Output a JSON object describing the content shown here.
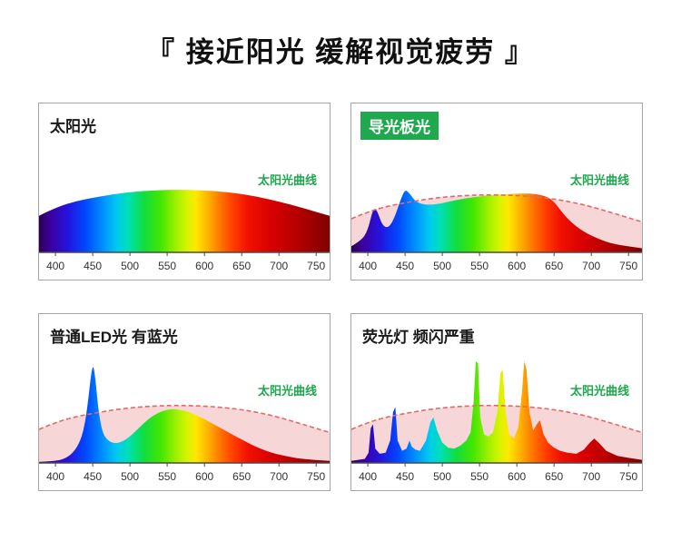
{
  "page": {
    "title": "『 接近阳光 缓解视觉疲劳 』",
    "background": "#ffffff"
  },
  "colors": {
    "accent_green": "#1fa84e",
    "sun_dash": "#e06a6a",
    "sun_fill": "#eba4a4",
    "axis": "#4a4a4a",
    "panel_border": "#a6a6a6",
    "spectrum_stops": [
      [
        0,
        "#2a0050"
      ],
      [
        0.04,
        "#3c00a0"
      ],
      [
        0.1,
        "#2414e0"
      ],
      [
        0.16,
        "#0048ff"
      ],
      [
        0.22,
        "#0090ff"
      ],
      [
        0.27,
        "#00ccee"
      ],
      [
        0.31,
        "#00e0b0"
      ],
      [
        0.36,
        "#10dd40"
      ],
      [
        0.42,
        "#45e600"
      ],
      [
        0.47,
        "#9cf000"
      ],
      [
        0.51,
        "#d8f400"
      ],
      [
        0.54,
        "#ffe800"
      ],
      [
        0.58,
        "#ffb400"
      ],
      [
        0.62,
        "#ff7a00"
      ],
      [
        0.67,
        "#ff3c00"
      ],
      [
        0.72,
        "#f01000"
      ],
      [
        0.8,
        "#d80000"
      ],
      [
        0.9,
        "#b00000"
      ],
      [
        1,
        "#800000"
      ]
    ]
  },
  "panels": [
    {
      "title": "太阳光",
      "title_style": "plain",
      "curve_label": "太阳光曲线"
    },
    {
      "title": "导光板光",
      "title_style": "badge",
      "curve_label": "太阳光曲线"
    },
    {
      "title": "普通LED光 有蓝光",
      "title_style": "plain",
      "curve_label": "太阳光曲线"
    },
    {
      "title": "荧光灯 频闪严重",
      "title_style": "plain",
      "curve_label": "太阳光曲线"
    }
  ],
  "chart_data": [
    {
      "type": "area",
      "title": "太阳光",
      "x_ticks": [
        400,
        450,
        500,
        550,
        600,
        650,
        700,
        750
      ],
      "x_range": [
        378,
        768
      ],
      "y_range": [
        0,
        1
      ],
      "grid": false,
      "series": [
        {
          "name": "太阳光",
          "style": "spectrum-area",
          "smooth": true,
          "points": [
            [
              378,
              0.36
            ],
            [
              400,
              0.44
            ],
            [
              430,
              0.51
            ],
            [
              460,
              0.55
            ],
            [
              490,
              0.585
            ],
            [
              520,
              0.605
            ],
            [
              550,
              0.615
            ],
            [
              580,
              0.615
            ],
            [
              610,
              0.605
            ],
            [
              640,
              0.585
            ],
            [
              670,
              0.55
            ],
            [
              700,
              0.5
            ],
            [
              730,
              0.44
            ],
            [
              768,
              0.36
            ]
          ]
        }
      ]
    },
    {
      "type": "area",
      "title": "导光板光",
      "x_ticks": [
        400,
        450,
        500,
        550,
        600,
        650,
        700,
        750
      ],
      "x_range": [
        378,
        768
      ],
      "y_range": [
        0,
        1
      ],
      "grid": false,
      "series": [
        {
          "name": "导光板光",
          "style": "spectrum-area",
          "smooth": true,
          "points": [
            [
              378,
              0.06
            ],
            [
              392,
              0.12
            ],
            [
              400,
              0.22
            ],
            [
              406,
              0.4
            ],
            [
              410,
              0.44
            ],
            [
              414,
              0.38
            ],
            [
              420,
              0.26
            ],
            [
              428,
              0.24
            ],
            [
              436,
              0.34
            ],
            [
              444,
              0.52
            ],
            [
              450,
              0.62
            ],
            [
              456,
              0.58
            ],
            [
              464,
              0.5
            ],
            [
              475,
              0.47
            ],
            [
              490,
              0.47
            ],
            [
              510,
              0.5
            ],
            [
              530,
              0.53
            ],
            [
              550,
              0.55
            ],
            [
              570,
              0.565
            ],
            [
              590,
              0.575
            ],
            [
              610,
              0.58
            ],
            [
              625,
              0.575
            ],
            [
              640,
              0.55
            ],
            [
              650,
              0.5
            ],
            [
              660,
              0.4
            ],
            [
              672,
              0.3
            ],
            [
              690,
              0.2
            ],
            [
              710,
              0.13
            ],
            [
              730,
              0.08
            ],
            [
              768,
              0.04
            ]
          ]
        },
        {
          "name": "太阳光曲线",
          "style": "dashed-sun",
          "smooth": true,
          "points": [
            [
              378,
              0.33
            ],
            [
              400,
              0.4
            ],
            [
              430,
              0.46
            ],
            [
              460,
              0.5
            ],
            [
              490,
              0.535
            ],
            [
              520,
              0.555
            ],
            [
              550,
              0.565
            ],
            [
              580,
              0.565
            ],
            [
              610,
              0.555
            ],
            [
              640,
              0.535
            ],
            [
              670,
              0.5
            ],
            [
              700,
              0.45
            ],
            [
              730,
              0.385
            ],
            [
              768,
              0.3
            ]
          ]
        }
      ]
    },
    {
      "type": "area",
      "title": "普通LED光 有蓝光",
      "x_ticks": [
        400,
        450,
        500,
        550,
        600,
        650,
        700,
        750
      ],
      "x_range": [
        378,
        768
      ],
      "y_range": [
        0,
        1
      ],
      "grid": false,
      "series": [
        {
          "name": "普通LED光",
          "style": "spectrum-area",
          "smooth": true,
          "points": [
            [
              378,
              0.01
            ],
            [
              400,
              0.02
            ],
            [
              412,
              0.04
            ],
            [
              424,
              0.1
            ],
            [
              434,
              0.22
            ],
            [
              440,
              0.4
            ],
            [
              444,
              0.62
            ],
            [
              448,
              0.88
            ],
            [
              451,
              0.97
            ],
            [
              454,
              0.8
            ],
            [
              458,
              0.5
            ],
            [
              463,
              0.3
            ],
            [
              470,
              0.22
            ],
            [
              480,
              0.19
            ],
            [
              490,
              0.21
            ],
            [
              500,
              0.26
            ],
            [
              510,
              0.33
            ],
            [
              520,
              0.4
            ],
            [
              530,
              0.46
            ],
            [
              540,
              0.5
            ],
            [
              550,
              0.525
            ],
            [
              560,
              0.53
            ],
            [
              570,
              0.52
            ],
            [
              580,
              0.5
            ],
            [
              590,
              0.465
            ],
            [
              600,
              0.43
            ],
            [
              615,
              0.37
            ],
            [
              630,
              0.31
            ],
            [
              645,
              0.25
            ],
            [
              660,
              0.19
            ],
            [
              675,
              0.14
            ],
            [
              690,
              0.1
            ],
            [
              710,
              0.065
            ],
            [
              730,
              0.04
            ],
            [
              768,
              0.02
            ]
          ]
        },
        {
          "name": "太阳光曲线",
          "style": "dashed-sun",
          "smooth": true,
          "points": [
            [
              378,
              0.33
            ],
            [
              400,
              0.4
            ],
            [
              430,
              0.46
            ],
            [
              460,
              0.5
            ],
            [
              490,
              0.535
            ],
            [
              520,
              0.555
            ],
            [
              550,
              0.565
            ],
            [
              580,
              0.565
            ],
            [
              610,
              0.555
            ],
            [
              640,
              0.535
            ],
            [
              670,
              0.5
            ],
            [
              700,
              0.45
            ],
            [
              730,
              0.385
            ],
            [
              768,
              0.3
            ]
          ]
        }
      ]
    },
    {
      "type": "area",
      "title": "荧光灯 频闪严重",
      "x_ticks": [
        400,
        450,
        500,
        550,
        600,
        650,
        700,
        750
      ],
      "x_range": [
        378,
        768
      ],
      "y_range": [
        0,
        1
      ],
      "grid": false,
      "series": [
        {
          "name": "荧光灯",
          "style": "spectrum-area",
          "smooth": false,
          "points": [
            [
              378,
              0.02
            ],
            [
              396,
              0.04
            ],
            [
              401,
              0.1
            ],
            [
              404,
              0.34
            ],
            [
              407,
              0.38
            ],
            [
              410,
              0.14
            ],
            [
              416,
              0.09
            ],
            [
              424,
              0.1
            ],
            [
              430,
              0.22
            ],
            [
              434,
              0.5
            ],
            [
              437,
              0.55
            ],
            [
              440,
              0.22
            ],
            [
              446,
              0.12
            ],
            [
              452,
              0.14
            ],
            [
              456,
              0.22
            ],
            [
              459,
              0.16
            ],
            [
              464,
              0.13
            ],
            [
              470,
              0.12
            ],
            [
              478,
              0.22
            ],
            [
              484,
              0.4
            ],
            [
              488,
              0.45
            ],
            [
              493,
              0.32
            ],
            [
              500,
              0.2
            ],
            [
              508,
              0.15
            ],
            [
              516,
              0.14
            ],
            [
              524,
              0.17
            ],
            [
              532,
              0.22
            ],
            [
              538,
              0.3
            ],
            [
              542,
              0.6
            ],
            [
              545,
              1.0
            ],
            [
              548,
              0.98
            ],
            [
              551,
              0.45
            ],
            [
              556,
              0.28
            ],
            [
              562,
              0.26
            ],
            [
              568,
              0.3
            ],
            [
              574,
              0.5
            ],
            [
              578,
              0.88
            ],
            [
              581,
              0.92
            ],
            [
              585,
              0.5
            ],
            [
              590,
              0.28
            ],
            [
              596,
              0.24
            ],
            [
              602,
              0.35
            ],
            [
              607,
              0.7
            ],
            [
              610,
              1.0
            ],
            [
              613,
              0.92
            ],
            [
              617,
              0.5
            ],
            [
              622,
              0.32
            ],
            [
              627,
              0.38
            ],
            [
              631,
              0.42
            ],
            [
              636,
              0.28
            ],
            [
              642,
              0.2
            ],
            [
              650,
              0.15
            ],
            [
              658,
              0.12
            ],
            [
              668,
              0.1
            ],
            [
              680,
              0.09
            ],
            [
              690,
              0.13
            ],
            [
              698,
              0.2
            ],
            [
              704,
              0.24
            ],
            [
              710,
              0.2
            ],
            [
              720,
              0.12
            ],
            [
              735,
              0.07
            ],
            [
              750,
              0.05
            ],
            [
              768,
              0.03
            ]
          ]
        },
        {
          "name": "太阳光曲线",
          "style": "dashed-sun",
          "smooth": true,
          "points": [
            [
              378,
              0.33
            ],
            [
              400,
              0.4
            ],
            [
              430,
              0.46
            ],
            [
              460,
              0.5
            ],
            [
              490,
              0.535
            ],
            [
              520,
              0.555
            ],
            [
              550,
              0.565
            ],
            [
              580,
              0.565
            ],
            [
              610,
              0.555
            ],
            [
              640,
              0.535
            ],
            [
              670,
              0.5
            ],
            [
              700,
              0.45
            ],
            [
              730,
              0.385
            ],
            [
              768,
              0.3
            ]
          ]
        }
      ]
    }
  ]
}
